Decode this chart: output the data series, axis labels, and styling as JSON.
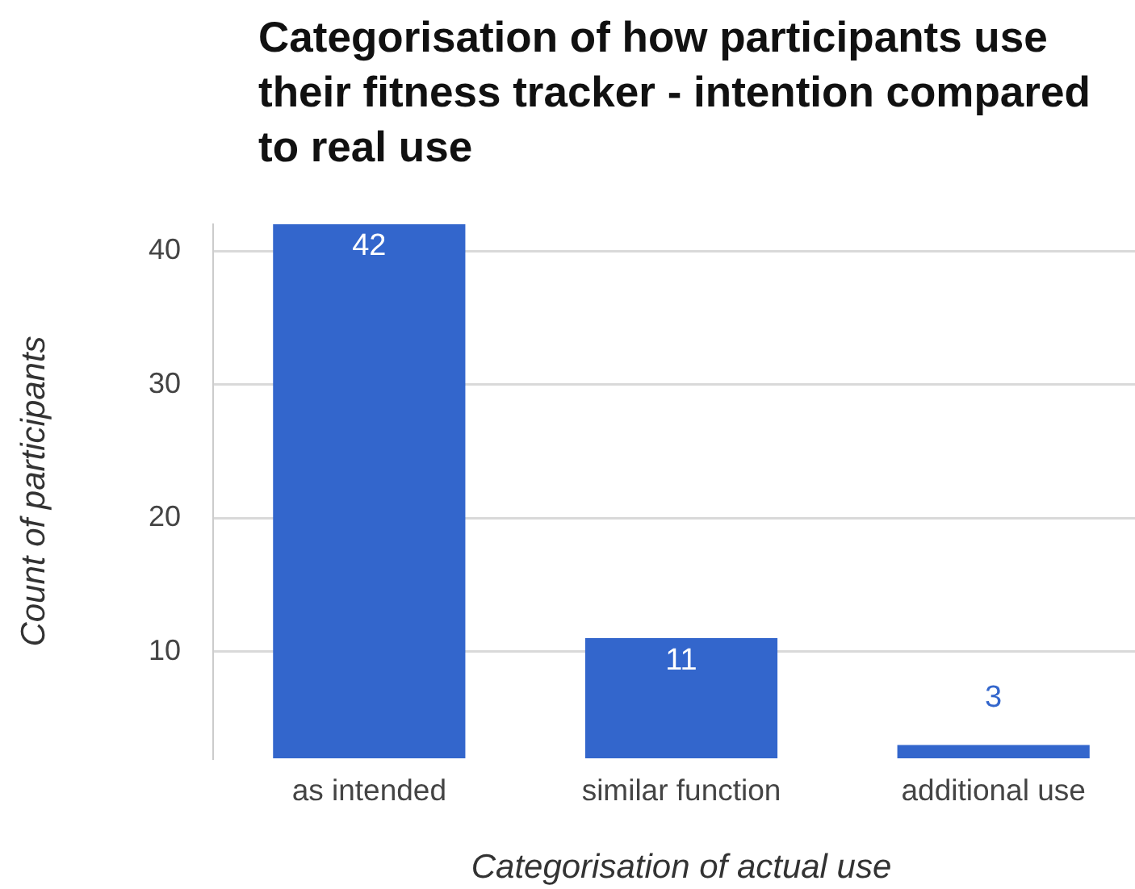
{
  "chart_data": {
    "type": "bar",
    "title": "Categorisation of how participants use their fitness tracker - intention compared to real use",
    "xlabel": "Categorisation of actual use",
    "ylabel": "Count of participants",
    "categories": [
      "as intended",
      "similar function",
      "additional use"
    ],
    "values": [
      42,
      11,
      3
    ],
    "color": "#3366cc",
    "ylim": [
      2,
      42
    ],
    "yticks": [
      10,
      20,
      30,
      40
    ],
    "grid": "y",
    "data_labels": true
  }
}
